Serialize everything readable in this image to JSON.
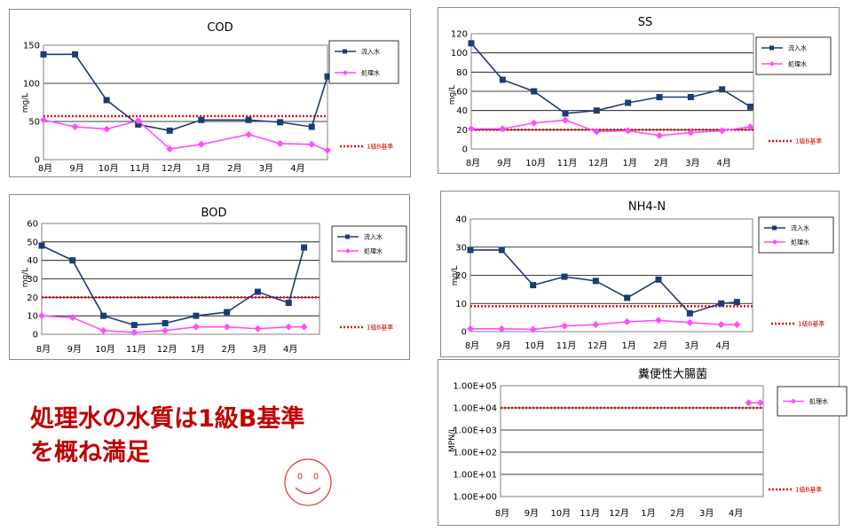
{
  "conclusion": {
    "line1": "処理水の水質は1級B基準",
    "line2": "を概ね満足"
  },
  "colors": {
    "influent": "#1f3b73",
    "treated": "#ff4dff",
    "standard": "#e01010",
    "text": "#c00000"
  },
  "legend": {
    "influent": "流入水",
    "treated": "処理水",
    "standard": "1級B基準"
  },
  "chart_data": [
    {
      "id": "cod",
      "type": "line",
      "title": "COD",
      "ylabel": "mg/L",
      "ylim": [
        0,
        150
      ],
      "yticks": [
        "0",
        "50",
        "100",
        "150"
      ],
      "xticks": [
        "8月",
        "9月",
        "10月",
        "11月",
        "12月",
        "1月",
        "2月",
        "3月",
        "4月"
      ],
      "x": [
        0,
        1,
        2,
        3,
        4,
        5,
        6.5,
        7.5,
        8.5,
        9
      ],
      "series": [
        {
          "name": "流入水",
          "values": [
            138,
            138,
            78,
            46,
            38,
            52,
            52,
            49,
            43,
            109
          ]
        },
        {
          "name": "処理水",
          "values": [
            52,
            43,
            40,
            51,
            14,
            20,
            33,
            21,
            20,
            12
          ]
        }
      ],
      "standard": 57
    },
    {
      "id": "ss",
      "type": "line",
      "title": "SS",
      "ylabel": "mg/L",
      "ylim": [
        0,
        120
      ],
      "yticks": [
        "0",
        "20",
        "40",
        "60",
        "80",
        "100",
        "120"
      ],
      "xticks": [
        "8月",
        "9月",
        "10月",
        "11月",
        "12月",
        "1月",
        "2月",
        "3月",
        "4月"
      ],
      "x": [
        0,
        1,
        2,
        3,
        4,
        5,
        6,
        7,
        8,
        8.9
      ],
      "series": [
        {
          "name": "流入水",
          "values": [
            110,
            72,
            60,
            37,
            40,
            48,
            54,
            54,
            62,
            44
          ]
        },
        {
          "name": "処理水",
          "values": [
            21,
            21,
            27,
            30,
            18,
            19,
            14,
            17,
            19,
            23
          ]
        }
      ],
      "standard": 20
    },
    {
      "id": "bod",
      "type": "line",
      "title": "BOD",
      "ylabel": "mg/L",
      "ylim": [
        0,
        60
      ],
      "yticks": [
        "0",
        "10",
        "20",
        "30",
        "40",
        "50",
        "60"
      ],
      "xticks": [
        "8月",
        "9月",
        "10月",
        "11月",
        "12月",
        "1月",
        "2月",
        "3月",
        "4月"
      ],
      "x": [
        0,
        1,
        2,
        3,
        4,
        5,
        6,
        7,
        8,
        8.5
      ],
      "series": [
        {
          "name": "流入水",
          "values": [
            48,
            40,
            10,
            5,
            6,
            10,
            12,
            23,
            17,
            47
          ]
        },
        {
          "name": "処理水",
          "values": [
            10,
            9,
            2,
            1,
            2,
            4,
            4,
            3,
            4,
            4
          ]
        }
      ],
      "standard": 20
    },
    {
      "id": "nh4",
      "type": "line",
      "title": "NH4-N",
      "ylabel": "mg/L",
      "ylim": [
        0,
        40
      ],
      "yticks": [
        "0",
        "10",
        "20",
        "30",
        "40"
      ],
      "xticks": [
        "8月",
        "9月",
        "10月",
        "11月",
        "12月",
        "1月",
        "2月",
        "3月",
        "4月"
      ],
      "x": [
        0,
        1,
        2,
        3,
        4,
        5,
        6,
        7,
        8,
        8.5
      ],
      "series": [
        {
          "name": "流入水",
          "values": [
            29,
            29,
            16.5,
            19.5,
            18,
            12,
            18.5,
            6.5,
            10,
            10.5
          ]
        },
        {
          "name": "処理水",
          "values": [
            1,
            1,
            0.8,
            2,
            2.5,
            3.5,
            4,
            3.2,
            2.5,
            2.5
          ]
        }
      ],
      "standard": 9
    },
    {
      "id": "coli",
      "type": "line",
      "title": "糞便性大腸菌",
      "ylabel": "MPN/L",
      "yscale": "log",
      "ylim": [
        0,
        5
      ],
      "yticks": [
        "1.00E+00",
        "1.00E+01",
        "1.00E+02",
        "1.00E+03",
        "1.00E+04",
        "1.00E+05"
      ],
      "xticks": [
        "8月",
        "9月",
        "10月",
        "11月",
        "12月",
        "1月",
        "2月",
        "3月",
        "4月"
      ],
      "x": [
        8.5,
        8.9
      ],
      "series": [
        {
          "name": "処理水",
          "values": [
            17000,
            17000
          ]
        }
      ],
      "standard": 10000
    }
  ]
}
